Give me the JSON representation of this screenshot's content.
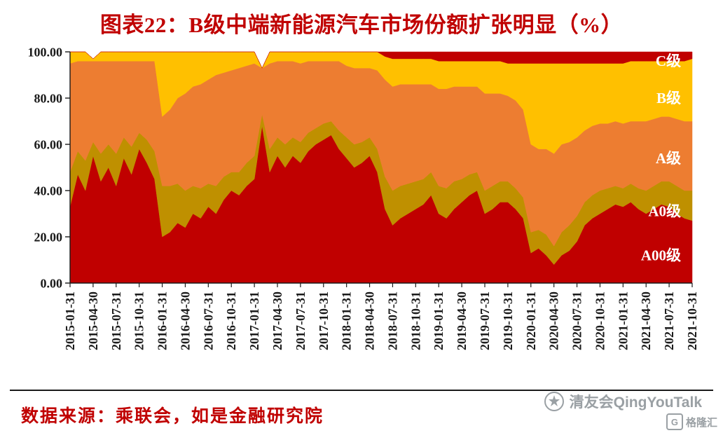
{
  "header": {
    "title": "图表22：B级中端新能源汽车市场份额扩张明显（%）"
  },
  "footer": {
    "source": "数据来源：乘联会，如是金融研究院",
    "watermark_text": "清友会QingYouTalk",
    "partner_logo": "格隆汇",
    "partner_icon_letter": "G"
  },
  "colors": {
    "title_red": "#C00000",
    "axis_black": "#1a1a1a",
    "series_label_white": "#FFFFFF",
    "watermark_gray": "#9aa0a4"
  },
  "chart_data": {
    "type": "area",
    "stacked": true,
    "percent_of_total": true,
    "title": "B级中端新能源汽车市场份额扩张明显（%）",
    "xlabel": "",
    "ylabel": "",
    "ylim": [
      0,
      100
    ],
    "y_tick_step": 20,
    "y_tick_labels": [
      "0.00",
      "20.00",
      "40.00",
      "60.00",
      "80.00",
      "100.00"
    ],
    "x_tick_every": 3,
    "grid": false,
    "legend_position": "inside-right",
    "x": [
      "2015-01-31",
      "2015-02-28",
      "2015-03-31",
      "2015-04-30",
      "2015-05-31",
      "2015-06-30",
      "2015-07-31",
      "2015-08-31",
      "2015-09-30",
      "2015-10-31",
      "2015-11-30",
      "2015-12-31",
      "2016-01-31",
      "2016-02-29",
      "2016-03-31",
      "2016-04-30",
      "2016-05-31",
      "2016-06-30",
      "2016-07-31",
      "2016-08-31",
      "2016-09-30",
      "2016-10-31",
      "2016-11-30",
      "2016-12-31",
      "2017-01-31",
      "2017-02-28",
      "2017-03-31",
      "2017-04-30",
      "2017-05-31",
      "2017-06-30",
      "2017-07-31",
      "2017-08-31",
      "2017-09-30",
      "2017-10-31",
      "2017-11-30",
      "2017-12-31",
      "2018-01-31",
      "2018-02-28",
      "2018-03-31",
      "2018-04-30",
      "2018-05-31",
      "2018-06-30",
      "2018-07-31",
      "2018-08-31",
      "2018-09-30",
      "2018-10-31",
      "2018-11-30",
      "2018-12-31",
      "2019-01-31",
      "2019-02-28",
      "2019-03-31",
      "2019-04-30",
      "2019-05-31",
      "2019-06-30",
      "2019-07-31",
      "2019-08-31",
      "2019-09-30",
      "2019-10-31",
      "2019-11-30",
      "2019-12-31",
      "2020-01-31",
      "2020-02-29",
      "2020-03-31",
      "2020-04-30",
      "2020-05-31",
      "2020-06-30",
      "2020-07-31",
      "2020-08-31",
      "2020-09-30",
      "2020-10-31",
      "2020-11-30",
      "2020-12-31",
      "2021-01-31",
      "2021-02-28",
      "2021-03-31",
      "2021-04-30",
      "2021-05-31",
      "2021-06-30",
      "2021-07-31",
      "2021-08-31",
      "2021-09-30",
      "2021-10-31"
    ],
    "series": [
      {
        "name": "A00级",
        "color": "#C00000",
        "label_y": 12,
        "values": [
          33,
          47,
          40,
          55,
          44,
          50,
          42,
          54,
          47,
          58,
          52,
          45,
          20,
          22,
          26,
          24,
          30,
          28,
          33,
          30,
          36,
          40,
          38,
          42,
          45,
          68,
          48,
          55,
          50,
          55,
          52,
          57,
          60,
          62,
          64,
          58,
          54,
          50,
          52,
          55,
          48,
          32,
          25,
          28,
          30,
          32,
          34,
          38,
          30,
          28,
          32,
          35,
          38,
          40,
          30,
          32,
          35,
          35,
          32,
          28,
          13,
          15,
          12,
          8,
          12,
          14,
          18,
          25,
          28,
          30,
          32,
          34,
          33,
          35,
          32,
          30,
          32,
          34,
          33,
          30,
          28,
          27
        ]
      },
      {
        "name": "A0级",
        "color": "#BF9000",
        "label_y": 31,
        "values": [
          15,
          10,
          13,
          6,
          12,
          10,
          14,
          9,
          12,
          7,
          10,
          12,
          22,
          20,
          17,
          16,
          12,
          13,
          10,
          12,
          10,
          8,
          10,
          10,
          10,
          5,
          10,
          8,
          10,
          8,
          9,
          8,
          7,
          7,
          6,
          8,
          9,
          10,
          9,
          8,
          10,
          14,
          15,
          14,
          13,
          12,
          11,
          10,
          12,
          13,
          12,
          10,
          9,
          8,
          10,
          10,
          9,
          9,
          9,
          9,
          9,
          8,
          9,
          8,
          10,
          11,
          11,
          10,
          10,
          10,
          9,
          8,
          8,
          8,
          9,
          10,
          10,
          10,
          11,
          12,
          12,
          13
        ]
      },
      {
        "name": "A级",
        "color": "#ED7D31",
        "label_y": 54,
        "values": [
          47,
          39,
          43,
          35,
          40,
          36,
          40,
          33,
          37,
          31,
          34,
          39,
          30,
          33,
          37,
          42,
          43,
          45,
          45,
          48,
          45,
          44,
          45,
          42,
          40,
          20,
          37,
          33,
          36,
          33,
          34,
          31,
          29,
          27,
          26,
          30,
          31,
          33,
          32,
          30,
          34,
          42,
          45,
          44,
          43,
          42,
          41,
          38,
          42,
          43,
          41,
          40,
          38,
          37,
          42,
          40,
          38,
          37,
          38,
          38,
          38,
          35,
          37,
          40,
          38,
          36,
          34,
          31,
          30,
          29,
          28,
          28,
          28,
          27,
          29,
          30,
          29,
          28,
          28,
          29,
          30,
          30
        ]
      },
      {
        "name": "B级",
        "color": "#FFC000",
        "label_y": 80,
        "values": [
          5,
          4,
          4,
          1,
          4,
          4,
          4,
          4,
          4,
          4,
          4,
          4,
          28,
          25,
          20,
          18,
          15,
          14,
          12,
          10,
          9,
          8,
          7,
          6,
          5,
          0,
          5,
          4,
          4,
          4,
          5,
          4,
          4,
          4,
          4,
          4,
          6,
          7,
          7,
          7,
          8,
          10,
          12,
          11,
          11,
          11,
          11,
          11,
          12,
          12,
          11,
          11,
          11,
          11,
          14,
          14,
          14,
          14,
          16,
          20,
          35,
          37,
          37,
          39,
          35,
          34,
          32,
          29,
          27,
          26,
          26,
          25,
          26,
          26,
          26,
          26,
          25,
          24,
          24,
          25,
          26,
          27
        ]
      },
      {
        "name": "C级",
        "color": "#C00000",
        "label_y": 96,
        "values": [
          0,
          0,
          0,
          0,
          0,
          0,
          0,
          0,
          0,
          0,
          0,
          0,
          0,
          0,
          0,
          0,
          0,
          0,
          0,
          0,
          0,
          0,
          0,
          0,
          0,
          0,
          0,
          0,
          0,
          0,
          0,
          0,
          0,
          0,
          0,
          0,
          0,
          0,
          0,
          0,
          0,
          2,
          3,
          3,
          3,
          3,
          3,
          3,
          4,
          4,
          4,
          4,
          4,
          4,
          4,
          4,
          4,
          5,
          5,
          5,
          5,
          5,
          5,
          5,
          5,
          5,
          5,
          5,
          5,
          5,
          5,
          5,
          5,
          4,
          4,
          4,
          4,
          4,
          4,
          4,
          4,
          3
        ]
      }
    ]
  }
}
